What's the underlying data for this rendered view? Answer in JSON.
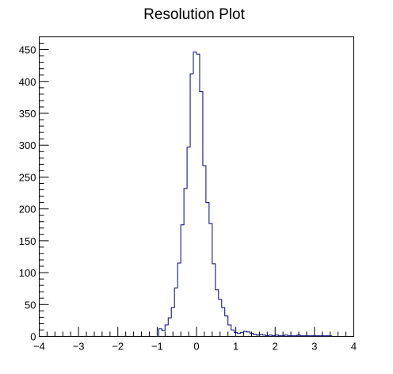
{
  "chart_data": {
    "type": "histogram",
    "title": "Resolution Plot",
    "xlabel": "",
    "ylabel": "",
    "xlim": [
      -4,
      4
    ],
    "ylim": [
      0,
      470
    ],
    "bin_width": 0.08,
    "bin_start": -0.96,
    "x_ticks": [
      -4,
      -3,
      -2,
      -1,
      0,
      1,
      2,
      3,
      4
    ],
    "x_tick_labels": [
      "−4",
      "−3",
      "−2",
      "−1",
      "0",
      "1",
      "2",
      "3",
      "4"
    ],
    "y_ticks": [
      0,
      50,
      100,
      150,
      200,
      250,
      300,
      350,
      400,
      450
    ],
    "y_tick_labels": [
      "0",
      "50",
      "100",
      "150",
      "200",
      "250",
      "300",
      "350",
      "400",
      "450"
    ],
    "grid": false,
    "line_color": "#000080",
    "counts": [
      12,
      9,
      18,
      29,
      45,
      76,
      115,
      175,
      232,
      297,
      412,
      446,
      443,
      384,
      268,
      210,
      177,
      114,
      73,
      58,
      45,
      32,
      18,
      10,
      6,
      5,
      6,
      8,
      7,
      5,
      3,
      2,
      3,
      2,
      1,
      2,
      1,
      2,
      1,
      1,
      2,
      1,
      1,
      1,
      2,
      1,
      1,
      1,
      1,
      1,
      1,
      1,
      1,
      1,
      1
    ]
  }
}
